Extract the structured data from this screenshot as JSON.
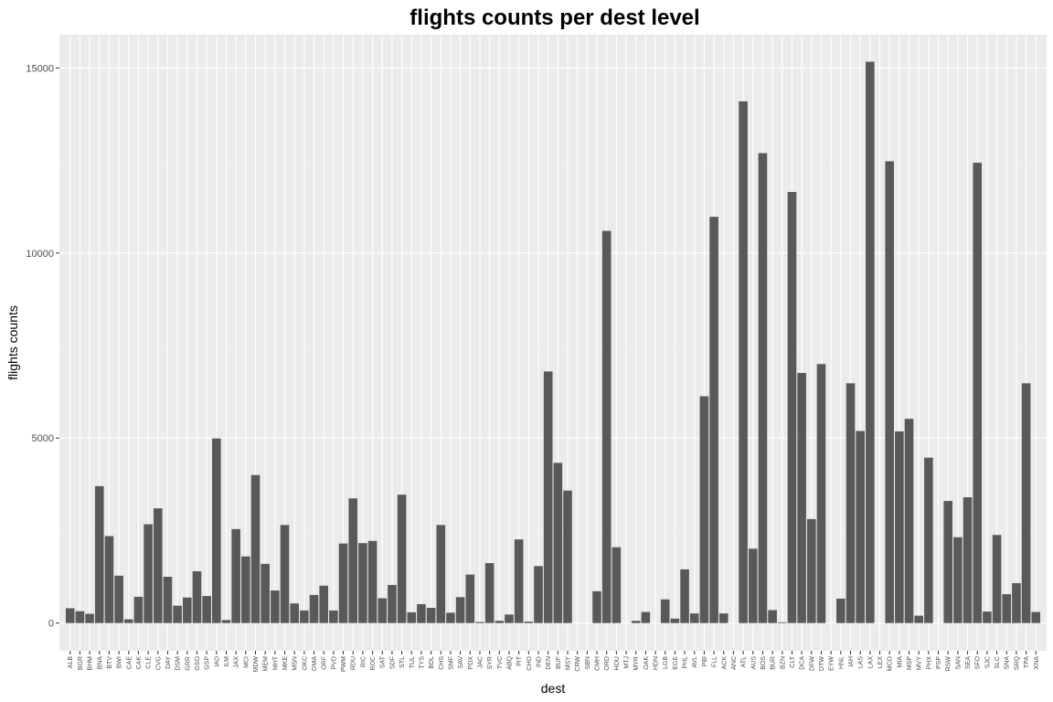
{
  "colors": {
    "panel": "#ebebeb",
    "grid_major": "#ffffff",
    "grid_minor": "#f2f2f2",
    "bar": "#595959",
    "tick_text": "#4d4d4d"
  },
  "chart_data": {
    "type": "bar",
    "title": "flights counts per dest level",
    "xlabel": "dest",
    "ylabel": "flights counts",
    "ylim": [
      -750,
      15900
    ],
    "yticks": [
      0,
      5000,
      10000,
      15000
    ],
    "ytick_labels": [
      "0",
      "5000",
      "10000",
      "15000"
    ],
    "grid": true,
    "legend": "none",
    "categories": [
      "ALB",
      "BGR",
      "BHM",
      "BNA",
      "BTV",
      "BWI",
      "CAE",
      "CAK",
      "CLE",
      "CVG",
      "DAY",
      "DSM",
      "GRR",
      "GSO",
      "GSP",
      "IAD",
      "ILM",
      "JAX",
      "MCI",
      "MDW",
      "MEM",
      "MHT",
      "MKE",
      "MSN",
      "OKC",
      "OMA",
      "ORF",
      "PVD",
      "PWM",
      "RDU",
      "RIC",
      "ROC",
      "SAT",
      "SDF",
      "STL",
      "TUL",
      "TYS",
      "BDL",
      "CHS",
      "SMF",
      "SAV",
      "PDX",
      "JAC",
      "SYR",
      "TVC",
      "ABQ",
      "PIT",
      "CHO",
      "IND",
      "DEN",
      "BUF",
      "MSY",
      "CRW",
      "SBN",
      "CMH",
      "ORD",
      "HOU",
      "MTJ",
      "MYR",
      "OAK",
      "HDN",
      "LGB",
      "EGE",
      "PHL",
      "AVL",
      "PBI",
      "FLL",
      "ACK",
      "ANC",
      "ATL",
      "AUS",
      "BOS",
      "BUR",
      "BZN",
      "CLT",
      "DCA",
      "DFW",
      "DTW",
      "EYW",
      "HNL",
      "IAH",
      "LAS",
      "LAX",
      "LEX",
      "MCO",
      "MIA",
      "MSP",
      "MVY",
      "PHX",
      "PSP",
      "RSW",
      "SAN",
      "SEA",
      "SFO",
      "SJC",
      "SLC",
      "SNA",
      "SRQ",
      "TPA",
      "XNA"
    ],
    "values": [
      400,
      320,
      250,
      3700,
      2350,
      1280,
      100,
      710,
      2670,
      3100,
      1250,
      470,
      690,
      1400,
      730,
      4990,
      80,
      2540,
      1800,
      4000,
      1600,
      880,
      2650,
      530,
      340,
      760,
      1010,
      340,
      2150,
      3370,
      2160,
      2220,
      670,
      1030,
      3470,
      290,
      510,
      410,
      2650,
      280,
      700,
      1310,
      30,
      1620,
      60,
      230,
      2260,
      40,
      1540,
      6800,
      4330,
      3580,
      0,
      0,
      860,
      10600,
      2050,
      0,
      60,
      300,
      0,
      640,
      120,
      1450,
      260,
      6130,
      10980,
      260,
      0,
      14100,
      2010,
      12700,
      350,
      20,
      11650,
      6760,
      2810,
      7000,
      0,
      660,
      6480,
      5190,
      15170,
      0,
      12480,
      5180,
      5520,
      200,
      4470,
      0,
      3300,
      2320,
      3400,
      12440,
      310,
      2380,
      780,
      1080,
      6480,
      300
    ]
  }
}
